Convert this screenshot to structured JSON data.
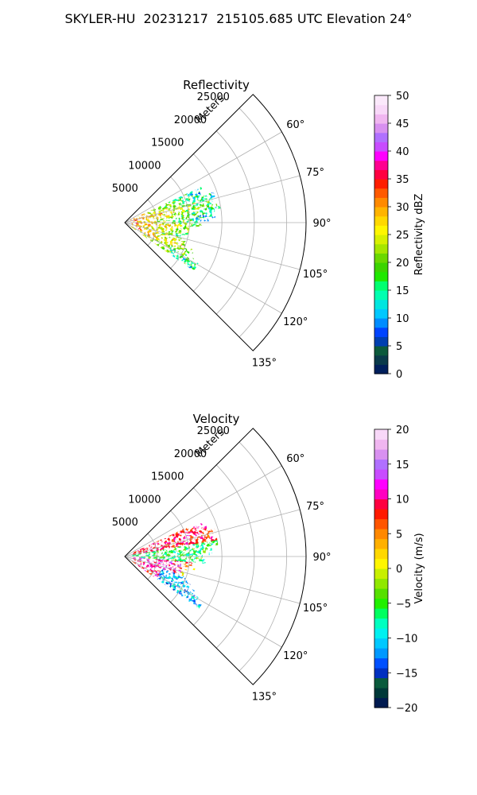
{
  "figure": {
    "title": "SKYLER-HU  20231217  215105.685 UTC Elevation 24°"
  },
  "chart_data": [
    {
      "type": "polar-sector",
      "title": "Reflectivity",
      "radial_label": "Meters",
      "r_ticks": [
        5000,
        10000,
        15000,
        20000,
        25000
      ],
      "r_tick_labels": [
        "5000",
        "10000",
        "15000",
        "20000",
        "25000"
      ],
      "r_max": 28000,
      "angle_range_deg": [
        45,
        135
      ],
      "angle_ticks": [
        60,
        75,
        90,
        105,
        120,
        135
      ],
      "angle_tick_labels": [
        "60°",
        "75°",
        "90°",
        "105°",
        "120°",
        "135°"
      ],
      "grid": true,
      "colorbar": {
        "label": "Reflectivity dBZ",
        "min": 0,
        "max": 50,
        "ticks": [
          0,
          5,
          10,
          15,
          20,
          25,
          30,
          35,
          40,
          45,
          50
        ],
        "tick_labels": [
          "0",
          "5",
          "10",
          "15",
          "20",
          "25",
          "30",
          "35",
          "40",
          "45",
          "50"
        ],
        "colors": [
          "#001f5c",
          "#0a3a4a",
          "#0c5a3c",
          "#003fb0",
          "#0044ff",
          "#008cff",
          "#00c8ff",
          "#00e6e0",
          "#00ffb0",
          "#00ff70",
          "#1fe800",
          "#3cd400",
          "#6ad800",
          "#a6e600",
          "#d8f000",
          "#fff600",
          "#ffd800",
          "#ffb400",
          "#ff8a00",
          "#ff5a00",
          "#ff1e00",
          "#ff0040",
          "#ff0090",
          "#ff00ff",
          "#c84cff",
          "#b070ff",
          "#d890f0",
          "#f0b6f0",
          "#f8d8f8",
          "#fbe9fb"
        ]
      },
      "field_estimate": {
        "range_m": [
          1000,
          15000
        ],
        "angle_deg": [
          65,
          124
        ],
        "typical_values": [
          10,
          35
        ],
        "near_range_values": [
          25,
          35
        ],
        "far_range_values": [
          10,
          20
        ]
      }
    },
    {
      "type": "polar-sector",
      "title": "Velocity",
      "radial_label": "Meters",
      "r_ticks": [
        5000,
        10000,
        15000,
        20000,
        25000
      ],
      "r_tick_labels": [
        "5000",
        "10000",
        "15000",
        "20000",
        "25000"
      ],
      "r_max": 28000,
      "angle_range_deg": [
        45,
        135
      ],
      "angle_ticks": [
        60,
        75,
        90,
        105,
        120,
        135
      ],
      "angle_tick_labels": [
        "60°",
        "75°",
        "90°",
        "105°",
        "120°",
        "135°"
      ],
      "grid": true,
      "colorbar": {
        "label": "Velocity (m/s)",
        "min": -20,
        "max": 20,
        "ticks": [
          -20,
          -15,
          -10,
          -5,
          0,
          5,
          10,
          15,
          20
        ],
        "tick_labels": [
          "−20",
          "−15",
          "−10",
          "−5",
          "0",
          "5",
          "10",
          "15",
          "20"
        ],
        "colors": [
          "#001a50",
          "#003838",
          "#0a5a3c",
          "#0030c0",
          "#0050ff",
          "#0098ff",
          "#00c8ff",
          "#00f0f0",
          "#00ffc0",
          "#00ff60",
          "#20f000",
          "#56e000",
          "#90e800",
          "#c8f000",
          "#fff600",
          "#ffd800",
          "#ffb000",
          "#ff8800",
          "#ff5500",
          "#ff1a00",
          "#ff0040",
          "#ff00c0",
          "#ff00ff",
          "#c84cff",
          "#b070ff",
          "#d890f0",
          "#f0b6f0",
          "#f8d8f8"
        ]
      },
      "field_estimate": {
        "range_m": [
          1000,
          15000
        ],
        "angle_deg": [
          65,
          124
        ],
        "north_band_values": [
          5,
          12
        ],
        "center_band_values": [
          -8,
          -2
        ],
        "south_band_values": [
          -14,
          12
        ]
      }
    }
  ]
}
